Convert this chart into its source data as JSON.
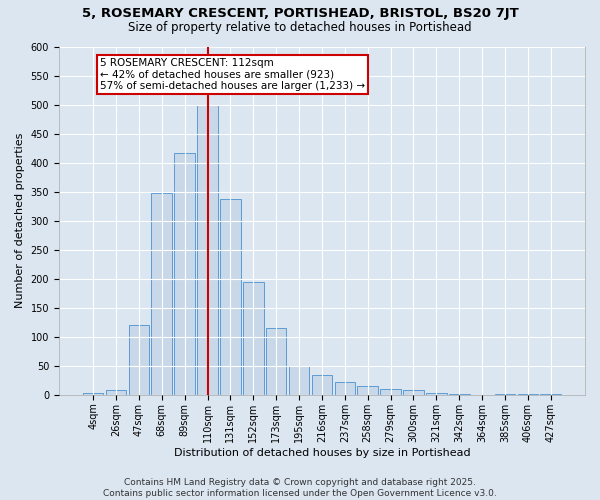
{
  "title_line1": "5, ROSEMARY CRESCENT, PORTISHEAD, BRISTOL, BS20 7JT",
  "title_line2": "Size of property relative to detached houses in Portishead",
  "xlabel": "Distribution of detached houses by size in Portishead",
  "ylabel": "Number of detached properties",
  "footer": "Contains HM Land Registry data © Crown copyright and database right 2025.\nContains public sector information licensed under the Open Government Licence v3.0.",
  "bin_labels": [
    "4sqm",
    "26sqm",
    "47sqm",
    "68sqm",
    "89sqm",
    "110sqm",
    "131sqm",
    "152sqm",
    "173sqm",
    "195sqm",
    "216sqm",
    "237sqm",
    "258sqm",
    "279sqm",
    "300sqm",
    "321sqm",
    "342sqm",
    "364sqm",
    "385sqm",
    "406sqm",
    "427sqm"
  ],
  "bar_values": [
    4,
    8,
    120,
    348,
    417,
    500,
    338,
    195,
    115,
    50,
    35,
    23,
    15,
    10,
    8,
    4,
    2,
    0,
    2,
    2,
    2
  ],
  "bar_color": "#c8d8e8",
  "bar_edge_color": "#5b9bd5",
  "vline_x_index": 5,
  "vline_color": "#cc0000",
  "annotation_text": "5 ROSEMARY CRESCENT: 112sqm\n← 42% of detached houses are smaller (923)\n57% of semi-detached houses are larger (1,233) →",
  "annotation_box_color": "#ffffff",
  "annotation_box_edge_color": "#cc0000",
  "ylim": [
    0,
    600
  ],
  "yticks": [
    0,
    50,
    100,
    150,
    200,
    250,
    300,
    350,
    400,
    450,
    500,
    550,
    600
  ],
  "bg_color": "#dce6f1",
  "plot_bg_color": "#dce6f1",
  "grid_color": "#ffffff",
  "title_fontsize": 9.5,
  "subtitle_fontsize": 8.5,
  "axis_label_fontsize": 8,
  "tick_fontsize": 7,
  "annotation_fontsize": 7.5,
  "footer_fontsize": 6.5
}
